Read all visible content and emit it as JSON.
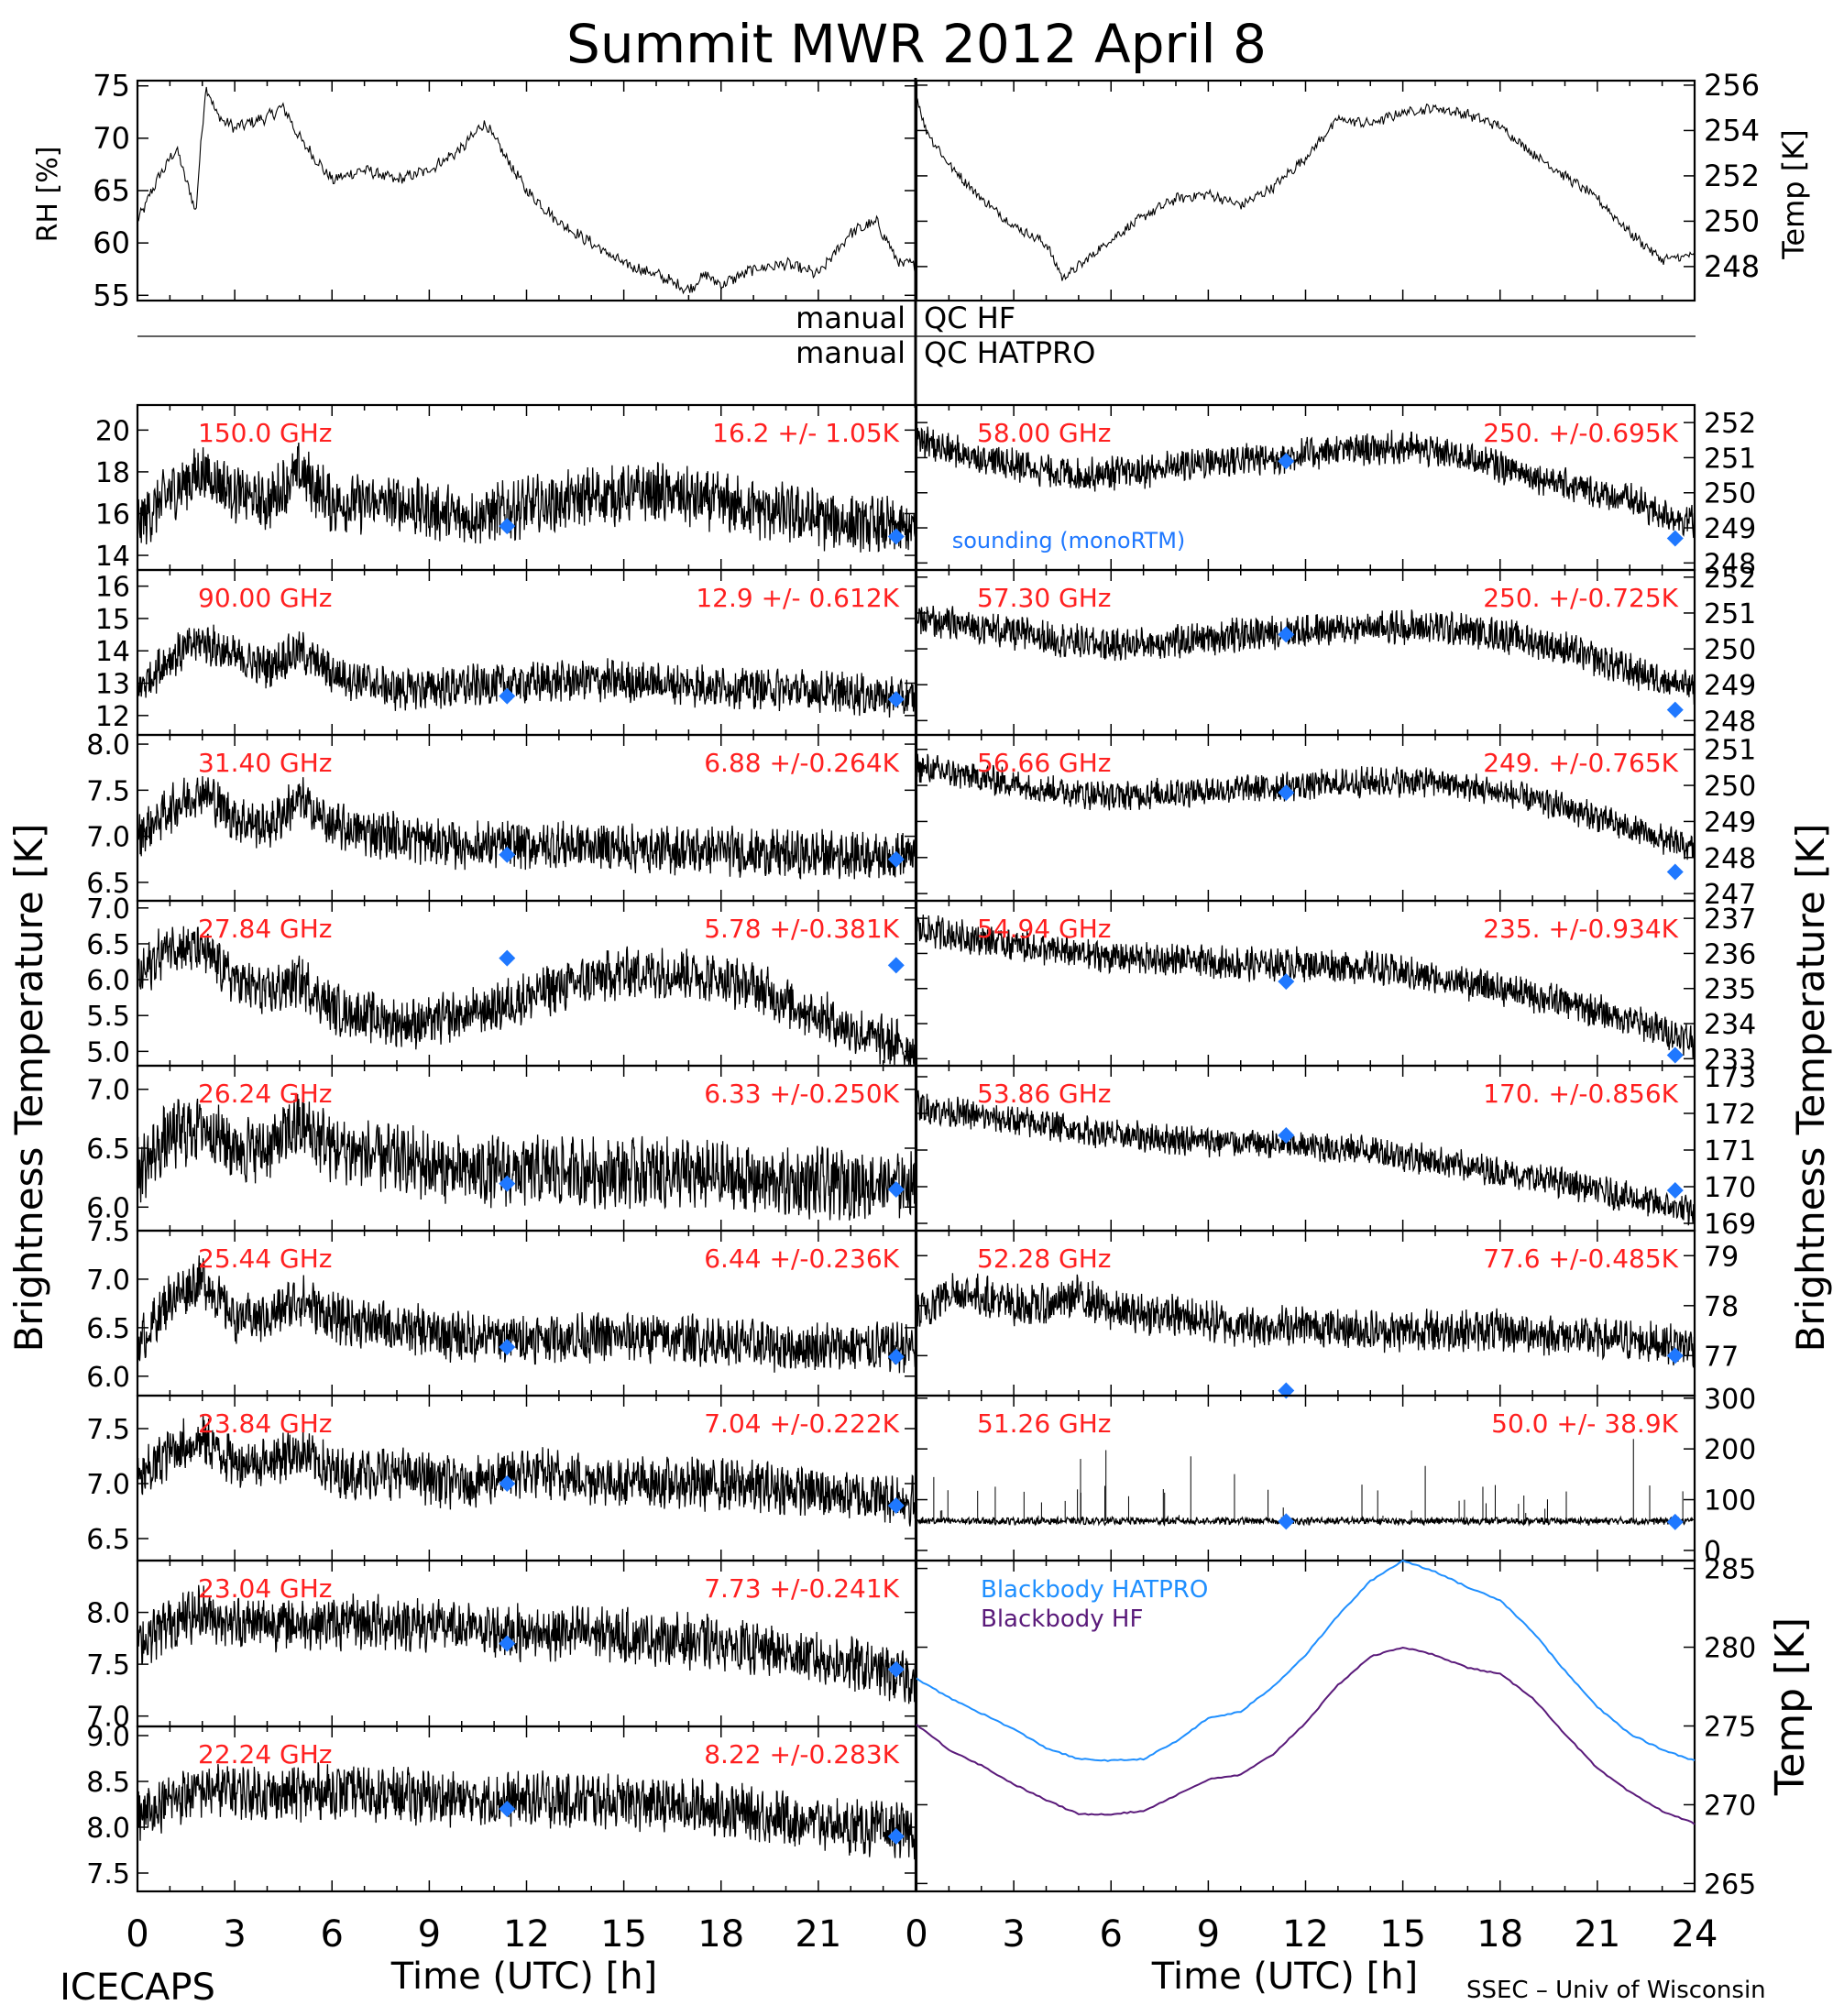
{
  "title": "Summit MWR 2012 April  8",
  "footer": {
    "left": "ICECAPS",
    "right": "SSEC – Univ of Wisconsin",
    "xlabel_left": "Time (UTC) [h]",
    "xlabel_right": "Time (UTC) [h]"
  },
  "ylabels": {
    "rh": "RH [%]",
    "temp_top": "Temp [K]",
    "tb_left": "Brightness Temperature [K]",
    "tb_right": "Brightness Temperature [K]",
    "temp_bottom": "Temp [K]"
  },
  "qc": {
    "line1_left": "manual",
    "line1_right": "QC HF",
    "line2_left": "manual",
    "line2_right": "QC HATPRO"
  },
  "sounding_label": "sounding (monoRTM)",
  "colors": {
    "annotation": "#ff2020",
    "sounding": "#1f78ff",
    "hatpro": "#1f8fff",
    "hf": "#5a1a7a",
    "data": "#000000"
  },
  "chart_data": [
    {
      "type": "line",
      "name": "rh",
      "ylabel": "RH [%]",
      "xlim": [
        0,
        24
      ],
      "ylim": [
        54.5,
        75.5
      ],
      "yticks": [
        55,
        60,
        65,
        70,
        75
      ],
      "x": [
        0,
        0.6,
        1.2,
        1.8,
        2.1,
        2.5,
        3,
        4,
        4.5,
        5,
        6,
        7,
        8,
        9,
        10,
        10.7,
        11.2,
        12,
        13,
        14,
        15,
        16,
        17,
        17.5,
        18,
        19,
        20,
        21,
        22,
        22.8,
        23.5,
        24
      ],
      "y": [
        62,
        66,
        69,
        63,
        75,
        72,
        71,
        72,
        73,
        70,
        66,
        67,
        66,
        67,
        69,
        71.5,
        69,
        65,
        62,
        60,
        58,
        57,
        55.5,
        57,
        56,
        57.5,
        58,
        57,
        61,
        62,
        58,
        58
      ]
    },
    {
      "type": "line",
      "name": "temp",
      "ylabel": "Temp [K]",
      "xlim": [
        0,
        24
      ],
      "ylim": [
        246.5,
        256.2
      ],
      "yticks": [
        248,
        250,
        252,
        254,
        256
      ],
      "x": [
        0,
        0.3,
        1,
        2,
        3,
        4,
        4.5,
        5,
        6,
        7,
        8,
        9,
        10,
        11,
        12,
        13,
        14,
        15,
        16,
        17,
        18,
        19,
        20,
        21,
        22,
        23,
        24
      ],
      "y": [
        255.5,
        254,
        252.5,
        251,
        249.8,
        249,
        247.5,
        248,
        249.2,
        250.2,
        251,
        251.2,
        250.7,
        251.5,
        252.8,
        254.5,
        254.3,
        254.8,
        255,
        254.7,
        254.2,
        253,
        252,
        251,
        249.5,
        248.3,
        248.5
      ]
    },
    {
      "type": "line",
      "name": "150.0 GHz",
      "label": "150.0 GHz",
      "stats": "16.2 +/-  1.05K",
      "side": "left",
      "ylim": [
        13.3,
        21.2
      ],
      "yticks": [
        14,
        16,
        18,
        20
      ],
      "noise": 1.2,
      "x": [
        0,
        1,
        2,
        3,
        4,
        5,
        6,
        8,
        10,
        11,
        12,
        14,
        16,
        18,
        20,
        22,
        24
      ],
      "y": [
        15.5,
        17,
        18,
        17,
        16.5,
        18,
        16.5,
        16.5,
        15.8,
        16,
        16.3,
        16.8,
        17,
        16.5,
        16,
        15.5,
        15.2
      ],
      "sounding": [
        [
          11.4,
          15.4
        ],
        [
          23.4,
          14.9
        ]
      ]
    },
    {
      "type": "line",
      "name": "58.00 GHz",
      "label": "58.00 GHz",
      "stats": "250. +/-0.695K",
      "side": "right",
      "ylim": [
        247.8,
        252.5
      ],
      "yticks": [
        248,
        249,
        250,
        251,
        252
      ],
      "noise": 0.4,
      "x": [
        0,
        1,
        3,
        5,
        7,
        9,
        11,
        13,
        15,
        17,
        19,
        21,
        22,
        23,
        24
      ],
      "y": [
        251.5,
        251.2,
        250.8,
        250.5,
        250.6,
        250.9,
        251,
        251.2,
        251.3,
        251,
        250.5,
        250,
        249.8,
        249.4,
        249.2
      ],
      "sounding": [
        [
          11.4,
          250.9
        ],
        [
          23.4,
          248.7
        ]
      ]
    },
    {
      "type": "line",
      "name": "90.00 GHz",
      "label": "90.00 GHz",
      "stats": "12.9 +/- 0.612K",
      "side": "left",
      "ylim": [
        11.4,
        16.5
      ],
      "yticks": [
        12,
        13,
        14,
        15,
        16
      ],
      "noise": 0.55,
      "x": [
        0,
        1,
        2,
        3,
        4,
        5,
        6,
        8,
        10,
        12,
        14,
        16,
        18,
        20,
        22,
        24
      ],
      "y": [
        12.8,
        13.8,
        14.3,
        13.8,
        13.5,
        14,
        13.3,
        12.8,
        12.9,
        13,
        13.1,
        13,
        12.9,
        12.8,
        12.7,
        12.5
      ],
      "sounding": [
        [
          11.4,
          12.6
        ],
        [
          23.4,
          12.5
        ]
      ]
    },
    {
      "type": "line",
      "name": "57.30 GHz",
      "label": "57.30 GHz",
      "stats": "250. +/-0.725K",
      "side": "right",
      "ylim": [
        247.6,
        252.2
      ],
      "yticks": [
        248,
        249,
        250,
        251,
        252
      ],
      "noise": 0.4,
      "x": [
        0,
        2,
        4,
        6,
        8,
        10,
        12,
        14,
        16,
        18,
        20,
        22,
        24
      ],
      "y": [
        250.8,
        250.6,
        250.3,
        250.1,
        250.2,
        250.4,
        250.5,
        250.6,
        250.6,
        250.4,
        250,
        249.4,
        248.9
      ],
      "sounding": [
        [
          11.4,
          250.4
        ],
        [
          23.4,
          248.3
        ]
      ]
    },
    {
      "type": "line",
      "name": "31.40 GHz",
      "label": "31.40 GHz",
      "stats": "6.88 +/-0.264K",
      "side": "left",
      "ylim": [
        6.3,
        8.1
      ],
      "yticks": [
        6.5,
        7.0,
        7.5,
        8.0
      ],
      "noise": 0.22,
      "x": [
        0,
        1,
        2,
        3,
        4,
        5,
        6,
        8,
        10,
        12,
        14,
        16,
        18,
        20,
        22,
        24
      ],
      "y": [
        7.0,
        7.3,
        7.5,
        7.2,
        7.1,
        7.4,
        7.1,
        7.0,
        6.9,
        6.9,
        6.9,
        6.85,
        6.85,
        6.8,
        6.8,
        6.8
      ],
      "sounding": [
        [
          11.4,
          6.8
        ],
        [
          23.4,
          6.75
        ]
      ]
    },
    {
      "type": "line",
      "name": "56.66 GHz",
      "label": "56.66 GHz",
      "stats": "249. +/-0.765K",
      "side": "right",
      "ylim": [
        246.8,
        251.4
      ],
      "yticks": [
        247,
        248,
        249,
        250,
        251
      ],
      "noise": 0.35,
      "x": [
        0,
        2,
        4,
        6,
        8,
        10,
        12,
        14,
        16,
        18,
        20,
        22,
        24
      ],
      "y": [
        250.5,
        250.2,
        249.9,
        249.7,
        249.8,
        249.9,
        250,
        250.1,
        250.1,
        249.8,
        249.4,
        248.8,
        248.2
      ],
      "sounding": [
        [
          11.4,
          249.8
        ],
        [
          23.4,
          247.6
        ]
      ]
    },
    {
      "type": "line",
      "name": "27.84 GHz",
      "label": "27.84 GHz",
      "stats": "5.78 +/-0.381K",
      "side": "left",
      "ylim": [
        4.8,
        7.1
      ],
      "yticks": [
        5.0,
        5.5,
        6.0,
        6.5,
        7.0
      ],
      "noise": 0.3,
      "x": [
        0,
        1,
        2,
        3,
        4,
        5,
        6,
        8,
        9,
        11,
        13,
        15,
        17,
        19,
        21,
        22,
        24
      ],
      "y": [
        6.0,
        6.5,
        6.4,
        6.0,
        5.8,
        6.0,
        5.6,
        5.4,
        5.4,
        5.6,
        5.9,
        6.1,
        6.1,
        5.9,
        5.5,
        5.3,
        5.0
      ],
      "sounding": [
        [
          11.4,
          6.3
        ],
        [
          23.4,
          6.2
        ]
      ]
    },
    {
      "type": "line",
      "name": "54.94 GHz",
      "label": "54.94 GHz",
      "stats": "235. +/-0.934K",
      "side": "right",
      "ylim": [
        232.8,
        237.5
      ],
      "yticks": [
        233,
        234,
        235,
        236,
        237
      ],
      "noise": 0.4,
      "x": [
        0,
        2,
        4,
        6,
        8,
        10,
        12,
        14,
        16,
        18,
        20,
        22,
        24
      ],
      "y": [
        236.7,
        236.4,
        236.1,
        235.9,
        235.8,
        235.7,
        235.7,
        235.6,
        235.3,
        235,
        234.6,
        234.1,
        233.5
      ],
      "sounding": [
        [
          11.4,
          235.2
        ],
        [
          23.4,
          233.1
        ]
      ]
    },
    {
      "type": "line",
      "name": "26.24 GHz",
      "label": "26.24 GHz",
      "stats": "6.33 +/-0.250K",
      "side": "left",
      "ylim": [
        5.8,
        7.2
      ],
      "yticks": [
        6.0,
        6.5,
        7.0
      ],
      "noise": 0.25,
      "x": [
        0,
        1,
        2,
        3,
        4,
        5,
        6,
        8,
        10,
        12,
        14,
        16,
        18,
        20,
        22,
        24
      ],
      "y": [
        6.3,
        6.6,
        6.7,
        6.5,
        6.5,
        6.7,
        6.5,
        6.4,
        6.3,
        6.3,
        6.3,
        6.3,
        6.25,
        6.2,
        6.2,
        6.2
      ],
      "sounding": [
        [
          11.4,
          6.2
        ],
        [
          23.4,
          6.15
        ]
      ]
    },
    {
      "type": "line",
      "name": "53.86 GHz",
      "label": "53.86 GHz",
      "stats": "170. +/-0.856K",
      "side": "right",
      "ylim": [
        168.8,
        173.3
      ],
      "yticks": [
        169,
        170,
        171,
        172,
        173
      ],
      "noise": 0.35,
      "x": [
        0,
        2,
        4,
        6,
        8,
        10,
        12,
        14,
        16,
        18,
        20,
        22,
        24
      ],
      "y": [
        172.2,
        171.9,
        171.7,
        171.4,
        171.3,
        171.2,
        171.1,
        171,
        170.7,
        170.4,
        170.1,
        169.7,
        169.3
      ],
      "sounding": [
        [
          11.4,
          171.4
        ],
        [
          23.4,
          169.9
        ]
      ]
    },
    {
      "type": "line",
      "name": "25.44 GHz",
      "label": "25.44 GHz",
      "stats": "6.44 +/-0.236K",
      "side": "left",
      "ylim": [
        5.8,
        7.5
      ],
      "yticks": [
        6.0,
        6.5,
        7.0,
        7.5
      ],
      "noise": 0.22,
      "x": [
        0,
        1,
        2,
        3,
        4,
        5,
        6,
        8,
        10,
        12,
        14,
        16,
        18,
        20,
        22,
        24
      ],
      "y": [
        6.3,
        6.8,
        7.0,
        6.6,
        6.6,
        6.8,
        6.6,
        6.5,
        6.4,
        6.4,
        6.4,
        6.4,
        6.35,
        6.3,
        6.3,
        6.3
      ],
      "sounding": [
        [
          11.4,
          6.3
        ],
        [
          23.4,
          6.2
        ]
      ]
    },
    {
      "type": "line",
      "name": "52.28 GHz",
      "label": "52.28 GHz",
      "stats": "77.6 +/-0.485K",
      "side": "right",
      "ylim": [
        76.2,
        79.5
      ],
      "yticks": [
        77,
        78,
        79
      ],
      "noise": 0.35,
      "x": [
        0,
        1,
        2,
        3,
        4,
        5,
        6,
        8,
        10,
        12,
        14,
        16,
        18,
        20,
        22,
        24
      ],
      "y": [
        77.8,
        78.3,
        78.2,
        78,
        78,
        78.2,
        77.9,
        77.8,
        77.6,
        77.6,
        77.5,
        77.5,
        77.5,
        77.4,
        77.3,
        77.2
      ],
      "sounding": [
        [
          11.4,
          76.3
        ],
        [
          23.4,
          77
        ]
      ]
    },
    {
      "type": "line",
      "name": "23.84 GHz",
      "label": "23.84 GHz",
      "stats": "7.04 +/-0.222K",
      "side": "left",
      "ylim": [
        6.3,
        7.8
      ],
      "yticks": [
        6.5,
        7.0,
        7.5
      ],
      "noise": 0.2,
      "x": [
        0,
        1,
        2,
        3,
        4,
        5,
        6,
        8,
        10,
        12,
        14,
        16,
        18,
        20,
        22,
        24
      ],
      "y": [
        7.0,
        7.3,
        7.4,
        7.2,
        7.2,
        7.3,
        7.1,
        7.1,
        7.0,
        7.1,
        7.05,
        7.0,
        7.0,
        6.95,
        6.9,
        6.85
      ],
      "sounding": [
        [
          11.4,
          7.0
        ],
        [
          23.4,
          6.8
        ]
      ]
    },
    {
      "type": "line",
      "name": "51.26 GHz",
      "label": "51.26 GHz",
      "stats": "50.0 +/- 38.9K",
      "side": "right",
      "ylim": [
        -20,
        305
      ],
      "yticks": [
        0,
        100,
        200,
        300
      ],
      "noise": 6,
      "spikes": true,
      "x": [
        0,
        24
      ],
      "y": [
        58,
        58
      ],
      "sounding": [
        [
          11.4,
          57
        ],
        [
          23.4,
          56
        ]
      ]
    },
    {
      "type": "line",
      "name": "23.04 GHz",
      "label": "23.04 GHz",
      "stats": "7.73 +/-0.241K",
      "side": "left",
      "ylim": [
        6.9,
        8.5
      ],
      "yticks": [
        7.0,
        7.5,
        8.0
      ],
      "noise": 0.22,
      "x": [
        0,
        1,
        2,
        3,
        4,
        6,
        8,
        10,
        12,
        14,
        16,
        18,
        20,
        22,
        24
      ],
      "y": [
        7.7,
        7.9,
        8.0,
        7.9,
        7.9,
        7.9,
        7.9,
        7.85,
        7.8,
        7.8,
        7.75,
        7.7,
        7.6,
        7.5,
        7.35
      ],
      "sounding": [
        [
          11.4,
          7.7
        ],
        [
          23.4,
          7.45
        ]
      ]
    },
    {
      "type": "line",
      "name": "22.24 GHz",
      "label": "22.24 GHz",
      "stats": "8.22 +/-0.283K",
      "side": "left",
      "ylim": [
        7.3,
        9.1
      ],
      "yticks": [
        7.5,
        8.0,
        8.5,
        9.0
      ],
      "noise": 0.25,
      "x": [
        0,
        1,
        2,
        3,
        4,
        6,
        8,
        10,
        12,
        14,
        16,
        18,
        20,
        22,
        24
      ],
      "y": [
        8.1,
        8.3,
        8.4,
        8.4,
        8.35,
        8.4,
        8.35,
        8.3,
        8.3,
        8.3,
        8.25,
        8.2,
        8.1,
        8.0,
        7.95
      ],
      "sounding": [
        [
          11.4,
          8.2
        ],
        [
          23.4,
          7.9
        ]
      ]
    },
    {
      "type": "line",
      "name": "blackbody",
      "ylabel": "Temp [K]",
      "xlim": [
        0,
        24
      ],
      "ylim": [
        264.5,
        285.5
      ],
      "yticks": [
        265,
        270,
        275,
        280,
        285
      ],
      "series": [
        {
          "name": "Blackbody HATPRO",
          "color": "#1f8fff",
          "x": [
            0,
            1,
            2,
            3,
            4,
            5,
            6,
            7,
            8,
            9,
            10,
            11,
            12,
            13,
            14,
            15,
            16,
            17,
            18,
            19,
            20,
            21,
            22,
            23,
            24
          ],
          "y": [
            278,
            276.8,
            275.8,
            274.8,
            273.6,
            272.9,
            272.8,
            272.9,
            274,
            275.5,
            275.9,
            277.5,
            279.5,
            282,
            284.2,
            285.5,
            284.8,
            283.8,
            283,
            281,
            278.5,
            276.2,
            274.5,
            273.5,
            272.8
          ]
        },
        {
          "name": "Blackbody HF",
          "color": "#5a1a7a",
          "x": [
            0,
            1,
            2,
            3,
            4,
            5,
            6,
            7,
            8,
            9,
            10,
            11,
            12,
            13,
            14,
            15,
            16,
            17,
            18,
            19,
            20,
            21,
            22,
            23,
            24
          ],
          "y": [
            275.1,
            273.5,
            272.5,
            271.3,
            270.3,
            269.4,
            269.4,
            269.6,
            270.6,
            271.6,
            271.9,
            273.2,
            275.2,
            277.6,
            279.4,
            280,
            279.5,
            278.7,
            278.3,
            276.8,
            274.5,
            272.3,
            270.8,
            269.6,
            268.8
          ]
        }
      ]
    }
  ],
  "xaxis": {
    "ticks_left": [
      "0",
      "3",
      "6",
      "9",
      "12",
      "15",
      "18",
      "21"
    ],
    "ticks_right": [
      "0",
      "3",
      "6",
      "9",
      "12",
      "15",
      "18",
      "21",
      "24"
    ]
  }
}
